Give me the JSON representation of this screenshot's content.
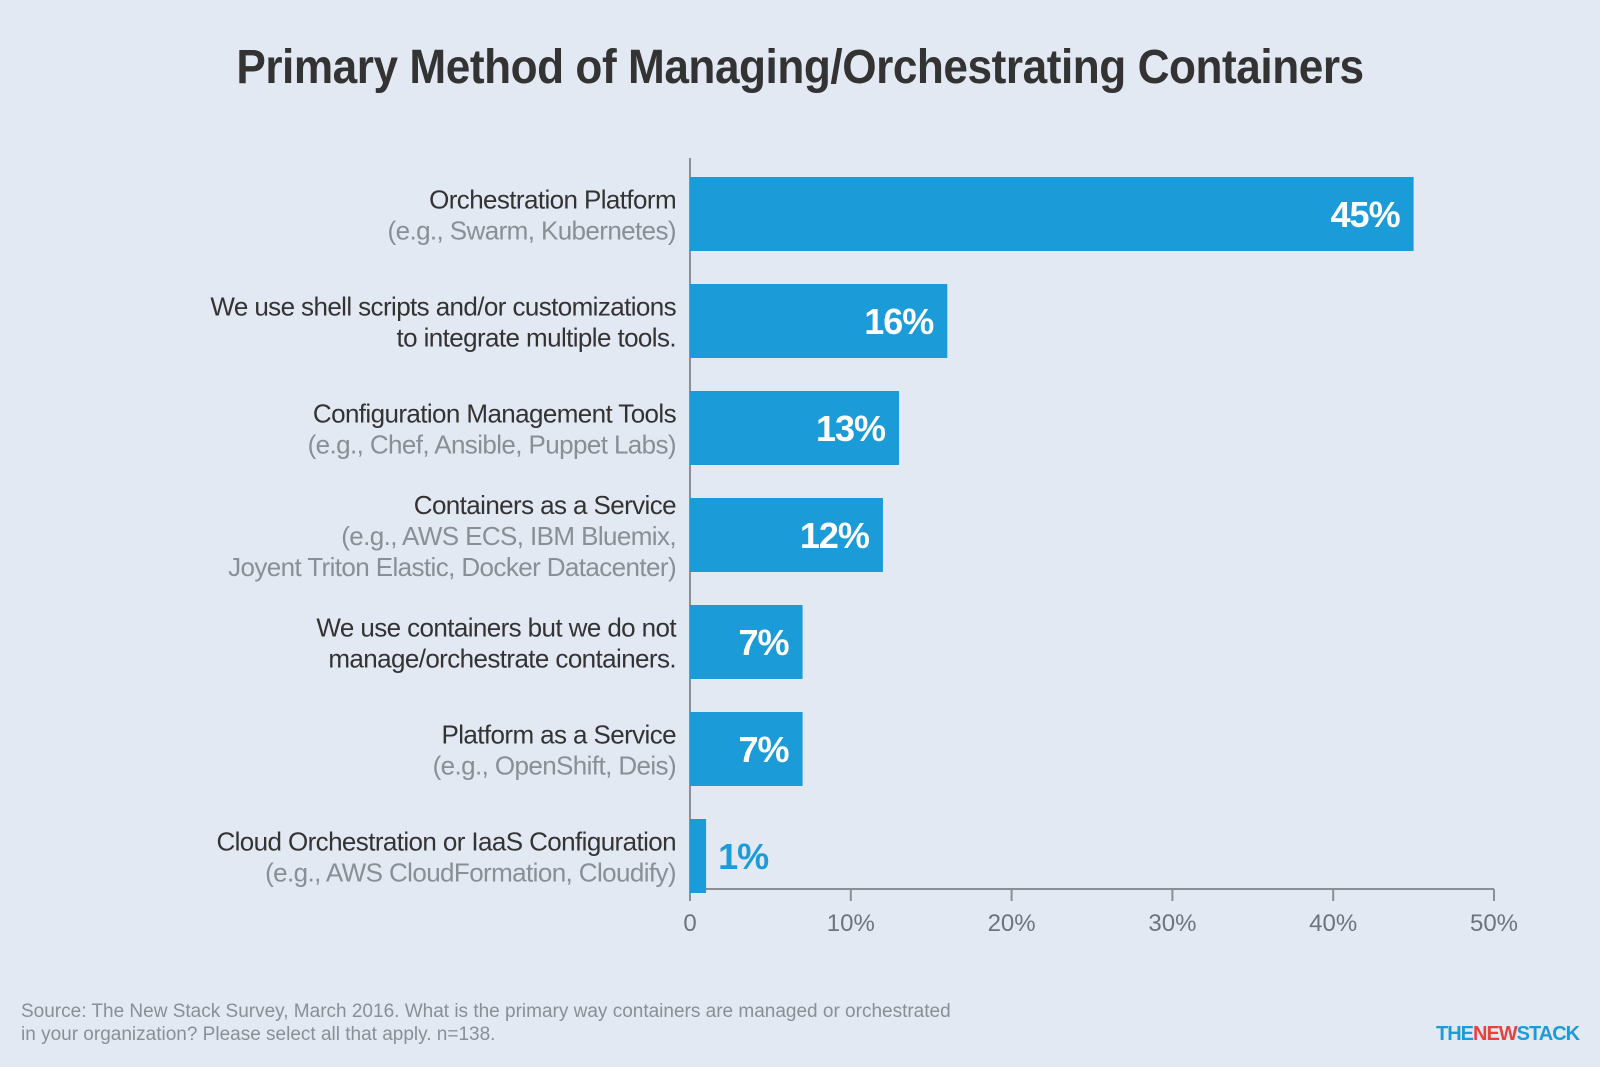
{
  "title": "Primary Method of Managing/Orchestrating Containers",
  "source": {
    "line1": "Source: The New Stack Survey, March 2016. What is the primary way containers are managed or orchestrated",
    "line2": "in your organization? Please select all that apply. n=138."
  },
  "logo": {
    "the": "THE",
    "new": "NEW",
    "stack": "STACK"
  },
  "colors": {
    "bar": "#1b9bd7",
    "background": "#e2e9f3",
    "title": "#333333",
    "label_main": "#333333",
    "label_sub": "#8a8f96",
    "axis": "#8a8f96",
    "value_inside": "#ffffff",
    "value_outside": "#1b9bd7"
  },
  "chart_data": {
    "type": "bar",
    "orientation": "horizontal",
    "categories": [
      {
        "main": [
          "Orchestration Platform"
        ],
        "sub": [
          "(e.g., Swarm, Kubernetes)"
        ]
      },
      {
        "main": [
          "We use shell scripts and/or customizations",
          "to integrate multiple tools."
        ],
        "sub": []
      },
      {
        "main": [
          "Configuration Management Tools"
        ],
        "sub": [
          "(e.g., Chef, Ansible, Puppet Labs)"
        ]
      },
      {
        "main": [
          "Containers as a Service"
        ],
        "sub": [
          "(e.g., AWS ECS, IBM Bluemix, ",
          "Joyent Triton Elastic, Docker Datacenter)"
        ]
      },
      {
        "main": [
          "We use containers but we do not",
          "manage/orchestrate containers."
        ],
        "sub": []
      },
      {
        "main": [
          "Platform as a Service"
        ],
        "sub": [
          "(e.g., OpenShift, Deis)"
        ]
      },
      {
        "main": [
          "Cloud Orchestration or IaaS Configuration"
        ],
        "sub": [
          "(e.g., AWS CloudFormation, Cloudify)"
        ]
      }
    ],
    "values": [
      45,
      16,
      13,
      12,
      7,
      7,
      1
    ],
    "value_labels": [
      "45%",
      "16%",
      "13%",
      "12%",
      "7%",
      "7%",
      "1%"
    ],
    "xlim": [
      0,
      50
    ],
    "xticks": [
      0,
      10,
      20,
      30,
      40,
      50
    ],
    "xtick_labels": [
      "0",
      "10%",
      "20%",
      "30%",
      "40%",
      "50%"
    ],
    "title": "Primary Method of Managing/Orchestrating Containers",
    "xlabel": "",
    "ylabel": "",
    "grid": false,
    "legend": "none"
  }
}
